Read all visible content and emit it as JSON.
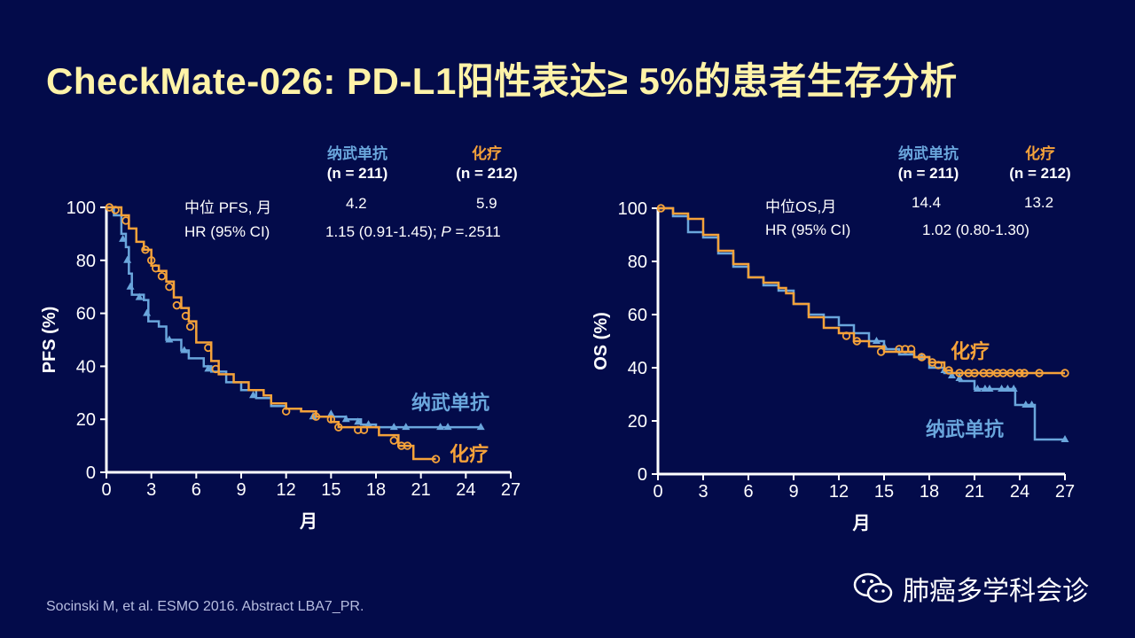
{
  "title": "CheckMate-026: PD-L1阳性表达≥ 5%的患者生存分析",
  "citation": "Socinski M, et al. ESMO 2016. Abstract LBA7_PR.",
  "watermark": "肺癌多学科会诊",
  "colors": {
    "nivolumab": "#6aa6dc",
    "chemo": "#f5a23a",
    "background": "#030b4a",
    "title": "#fff3a8"
  },
  "pfs_panel": {
    "arm1": {
      "name": "纳武单抗",
      "n": "(n = 211)"
    },
    "arm2": {
      "name": "化疗",
      "n": "(n = 212)"
    },
    "median_label": "中位 PFS, 月",
    "median1": "4.2",
    "median2": "5.9",
    "hr_label": "HR (95% CI)",
    "hr_value": "1.15 (0.91-1.45); ",
    "p_label": "P",
    "p_value": " =.2511"
  },
  "os_panel": {
    "arm1": {
      "name": "纳武单抗",
      "n": "(n = 211)"
    },
    "arm2": {
      "name": "化疗",
      "n": "(n = 212)"
    },
    "median_label": "中位OS,月",
    "median1": "14.4",
    "median2": "13.2",
    "hr_label": "HR (95% CI)",
    "hr_value": "1.02 (0.80-1.30)"
  },
  "chart_data": [
    {
      "type": "line",
      "title": "PFS",
      "xlabel": "月",
      "ylabel": "PFS (%)",
      "xlim": [
        0,
        27
      ],
      "ylim": [
        0,
        100
      ],
      "xticks": [
        "0",
        "3",
        "6",
        "9",
        "12",
        "15",
        "18",
        "21",
        "24",
        "27"
      ],
      "yticks": [
        "0",
        "20",
        "40",
        "60",
        "80",
        "100"
      ],
      "series": [
        {
          "name": "纳武单抗",
          "color": "#6aa6dc",
          "marker": "triangle",
          "points": [
            [
              0,
              100
            ],
            [
              0.5,
              97
            ],
            [
              1,
              90
            ],
            [
              1.3,
              85
            ],
            [
              1.5,
              75
            ],
            [
              1.7,
              67
            ],
            [
              2.5,
              65
            ],
            [
              2.8,
              57
            ],
            [
              3.5,
              55
            ],
            [
              4,
              50
            ],
            [
              5,
              46
            ],
            [
              5.5,
              43
            ],
            [
              6.5,
              40
            ],
            [
              7,
              38
            ],
            [
              8,
              34
            ],
            [
              9,
              31
            ],
            [
              10,
              28
            ],
            [
              11,
              25
            ],
            [
              12,
              24
            ],
            [
              13,
              23
            ],
            [
              14,
              21
            ],
            [
              15,
              21
            ],
            [
              16,
              20
            ],
            [
              17,
              18
            ],
            [
              18,
              17
            ],
            [
              25,
              17
            ]
          ],
          "censored": [
            [
              1.1,
              88
            ],
            [
              1.4,
              80
            ],
            [
              1.6,
              70
            ],
            [
              2.2,
              66
            ],
            [
              2.7,
              60
            ],
            [
              4.2,
              50
            ],
            [
              5.2,
              46
            ],
            [
              6.8,
              39
            ],
            [
              9.8,
              29
            ],
            [
              13.8,
              21
            ],
            [
              15,
              22
            ],
            [
              16,
              20
            ],
            [
              16.8,
              19
            ],
            [
              17.5,
              18
            ],
            [
              19.2,
              17
            ],
            [
              20,
              17
            ],
            [
              22.3,
              17
            ],
            [
              22.8,
              17
            ],
            [
              25,
              17
            ]
          ]
        },
        {
          "name": "化疗",
          "color": "#f5a23a",
          "marker": "circle",
          "points": [
            [
              0,
              100
            ],
            [
              1,
              97
            ],
            [
              1.5,
              92
            ],
            [
              2,
              87
            ],
            [
              2.5,
              84
            ],
            [
              3,
              78
            ],
            [
              3.5,
              76
            ],
            [
              4,
              72
            ],
            [
              4.5,
              66
            ],
            [
              5,
              62
            ],
            [
              5.5,
              57
            ],
            [
              6,
              49
            ],
            [
              6.8,
              49
            ],
            [
              7,
              42
            ],
            [
              7.5,
              37
            ],
            [
              8.5,
              34
            ],
            [
              9.5,
              31
            ],
            [
              10.5,
              29
            ],
            [
              11,
              26
            ],
            [
              12,
              24
            ],
            [
              13,
              23
            ],
            [
              14,
              21
            ],
            [
              15,
              19
            ],
            [
              15.5,
              17
            ],
            [
              18,
              17
            ],
            [
              18.2,
              14
            ],
            [
              19.5,
              10
            ],
            [
              20.5,
              10
            ],
            [
              20.5,
              5
            ],
            [
              22,
              5
            ]
          ],
          "censored": [
            [
              0.2,
              100
            ],
            [
              0.6,
              99
            ],
            [
              1.3,
              95
            ],
            [
              2.6,
              84
            ],
            [
              3,
              80
            ],
            [
              3.3,
              77
            ],
            [
              3.7,
              74
            ],
            [
              4.2,
              70
            ],
            [
              4.7,
              63
            ],
            [
              5.3,
              59
            ],
            [
              5.6,
              55
            ],
            [
              6.8,
              47
            ],
            [
              7.3,
              39
            ],
            [
              12,
              23
            ],
            [
              14,
              21
            ],
            [
              15,
              20
            ],
            [
              15.5,
              17
            ],
            [
              16.8,
              16
            ],
            [
              17.2,
              16
            ],
            [
              19.2,
              12
            ],
            [
              19.7,
              10
            ],
            [
              20.1,
              10
            ],
            [
              22,
              5
            ]
          ]
        }
      ],
      "annotations": [
        "纳武单抗",
        "化疗"
      ]
    },
    {
      "type": "line",
      "title": "OS",
      "xlabel": "月",
      "ylabel": "OS (%)",
      "xlim": [
        0,
        27
      ],
      "ylim": [
        0,
        100
      ],
      "xticks": [
        "0",
        "3",
        "6",
        "9",
        "12",
        "15",
        "18",
        "21",
        "24",
        "27"
      ],
      "yticks": [
        "0",
        "20",
        "40",
        "60",
        "80",
        "100"
      ],
      "series": [
        {
          "name": "纳武单抗",
          "color": "#6aa6dc",
          "marker": "triangle",
          "points": [
            [
              0,
              100
            ],
            [
              1,
              97
            ],
            [
              2,
              91
            ],
            [
              3,
              89
            ],
            [
              4,
              83
            ],
            [
              5,
              78
            ],
            [
              6,
              74
            ],
            [
              7,
              71
            ],
            [
              8,
              69
            ],
            [
              9,
              64
            ],
            [
              10,
              60
            ],
            [
              11,
              59
            ],
            [
              12,
              56
            ],
            [
              13,
              53
            ],
            [
              14,
              50
            ],
            [
              15,
              47
            ],
            [
              16,
              45
            ],
            [
              17,
              44
            ],
            [
              18,
              40
            ],
            [
              19,
              38
            ],
            [
              20,
              35
            ],
            [
              21,
              32
            ],
            [
              23.7,
              32
            ],
            [
              23.7,
              26
            ],
            [
              25,
              26
            ],
            [
              25,
              13
            ],
            [
              27,
              13
            ]
          ],
          "censored": [
            [
              14.5,
              50
            ],
            [
              15,
              48
            ],
            [
              17.5,
              44
            ],
            [
              19,
              39
            ],
            [
              19.5,
              37
            ],
            [
              20,
              36
            ],
            [
              21.2,
              32
            ],
            [
              21.7,
              32
            ],
            [
              22,
              32
            ],
            [
              22.8,
              32
            ],
            [
              23.2,
              32
            ],
            [
              23.6,
              32
            ],
            [
              24.4,
              26
            ],
            [
              24.8,
              26
            ],
            [
              27,
              13
            ]
          ]
        },
        {
          "name": "化疗",
          "color": "#f5a23a",
          "marker": "circle",
          "points": [
            [
              0,
              100
            ],
            [
              1,
              98
            ],
            [
              2,
              96
            ],
            [
              3,
              90
            ],
            [
              4,
              84
            ],
            [
              5,
              79
            ],
            [
              6,
              74
            ],
            [
              7,
              72
            ],
            [
              8,
              70
            ],
            [
              8.5,
              68
            ],
            [
              9,
              64
            ],
            [
              10,
              59
            ],
            [
              11,
              55
            ],
            [
              12,
              53
            ],
            [
              13,
              50
            ],
            [
              14,
              48
            ],
            [
              15,
              46
            ],
            [
              16,
              46
            ],
            [
              17,
              44
            ],
            [
              18,
              42
            ],
            [
              19,
              39
            ],
            [
              19.5,
              38
            ],
            [
              27,
              38
            ]
          ],
          "censored": [
            [
              0.2,
              100
            ],
            [
              12.5,
              52
            ],
            [
              13.2,
              50
            ],
            [
              14.8,
              46
            ],
            [
              16,
              47
            ],
            [
              16.4,
              47
            ],
            [
              16.8,
              47
            ],
            [
              17.5,
              44
            ],
            [
              18.2,
              42
            ],
            [
              18.6,
              41
            ],
            [
              19.3,
              39
            ],
            [
              20,
              38
            ],
            [
              20.6,
              38
            ],
            [
              21,
              38
            ],
            [
              21.6,
              38
            ],
            [
              22,
              38
            ],
            [
              22.5,
              38
            ],
            [
              22.9,
              38
            ],
            [
              23.4,
              38
            ],
            [
              24,
              38
            ],
            [
              24.3,
              38
            ],
            [
              25.3,
              38
            ],
            [
              27,
              38
            ]
          ]
        }
      ],
      "annotations": [
        "化疗",
        "纳武单抗"
      ]
    }
  ]
}
